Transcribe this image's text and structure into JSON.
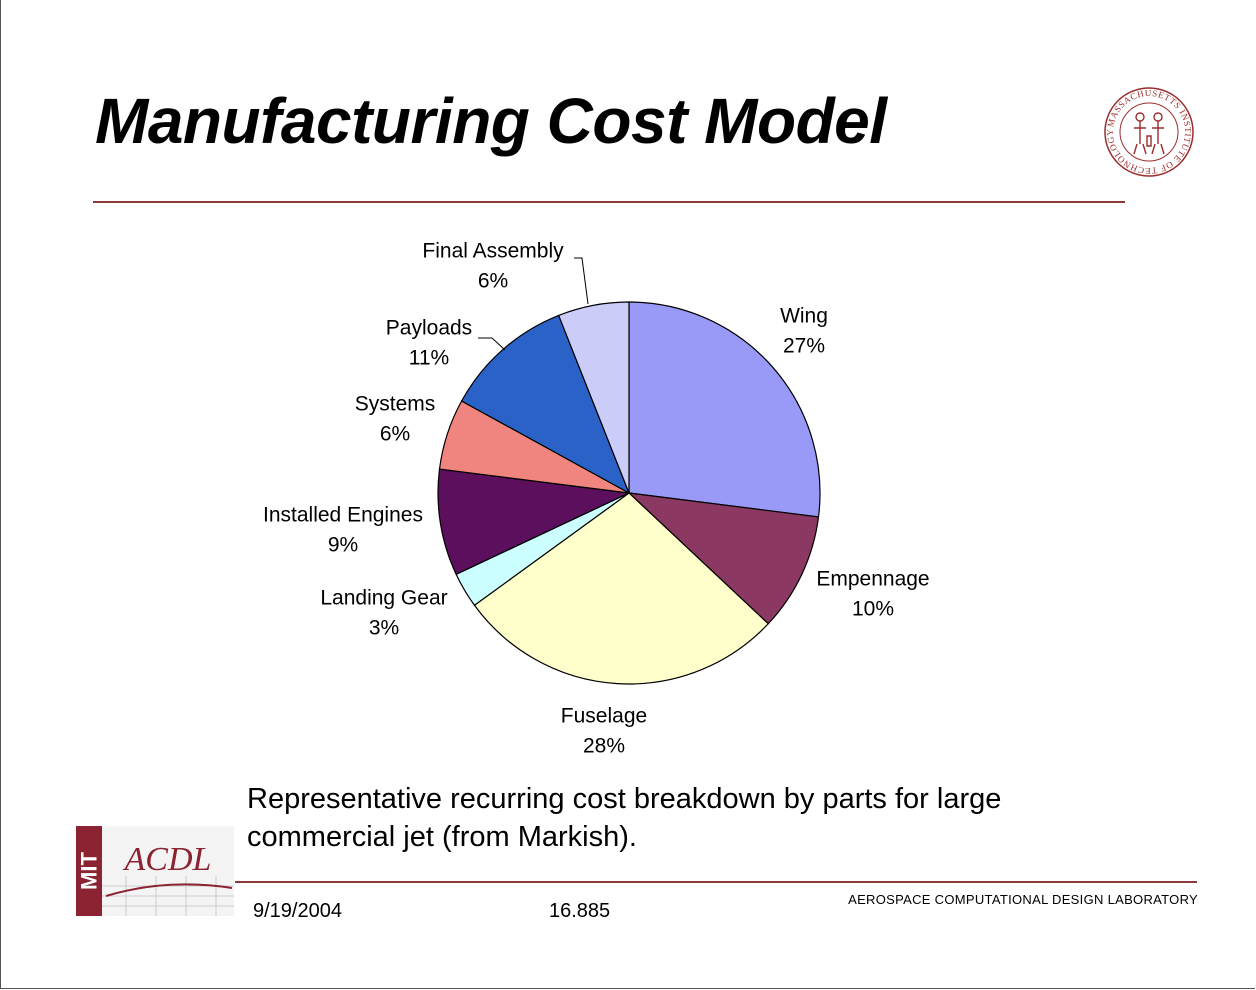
{
  "slide": {
    "title": "Manufacturing Cost Model",
    "caption": "Representative recurring cost breakdown by parts for large commercial jet (from Markish).",
    "date": "9/19/2004",
    "course": "16.885",
    "lab_name": "AEROSPACE COMPUTATIONAL DESIGN LABORATORY"
  },
  "logos": {
    "seal_icon": "mit-seal-icon",
    "seal_text": "MASSACHUSETTS INSTITUTE OF TECHNOLOGY",
    "lab_logo_icon": "mit-acdl-logo-icon",
    "lab_logo_text_left": "MIT",
    "lab_logo_text_right": "ACDL"
  },
  "colors": {
    "accent_rule": "#8b3a3a"
  },
  "chart_data": {
    "type": "pie",
    "start_angle_deg": 90,
    "direction": "clockwise",
    "slices": [
      {
        "label": "Wing",
        "pct_label": "27%",
        "value": 27,
        "color": "#9999f8"
      },
      {
        "label": "Empennage",
        "pct_label": "10%",
        "value": 10,
        "color": "#8b3862"
      },
      {
        "label": "Fuselage",
        "pct_label": "28%",
        "value": 28,
        "color": "#ffffcc"
      },
      {
        "label": "Landing Gear",
        "pct_label": "3%",
        "value": 3,
        "color": "#ccffff"
      },
      {
        "label": "Installed Engines",
        "pct_label": "9%",
        "value": 9,
        "color": "#5c0f5c"
      },
      {
        "label": "Systems",
        "pct_label": "6%",
        "value": 6,
        "color": "#f0857f"
      },
      {
        "label": "Payloads",
        "pct_label": "11%",
        "value": 11,
        "color": "#2b62c8"
      },
      {
        "label": "Final Assembly",
        "pct_label": "6%",
        "value": 6,
        "color": "#ccccf8"
      }
    ]
  }
}
